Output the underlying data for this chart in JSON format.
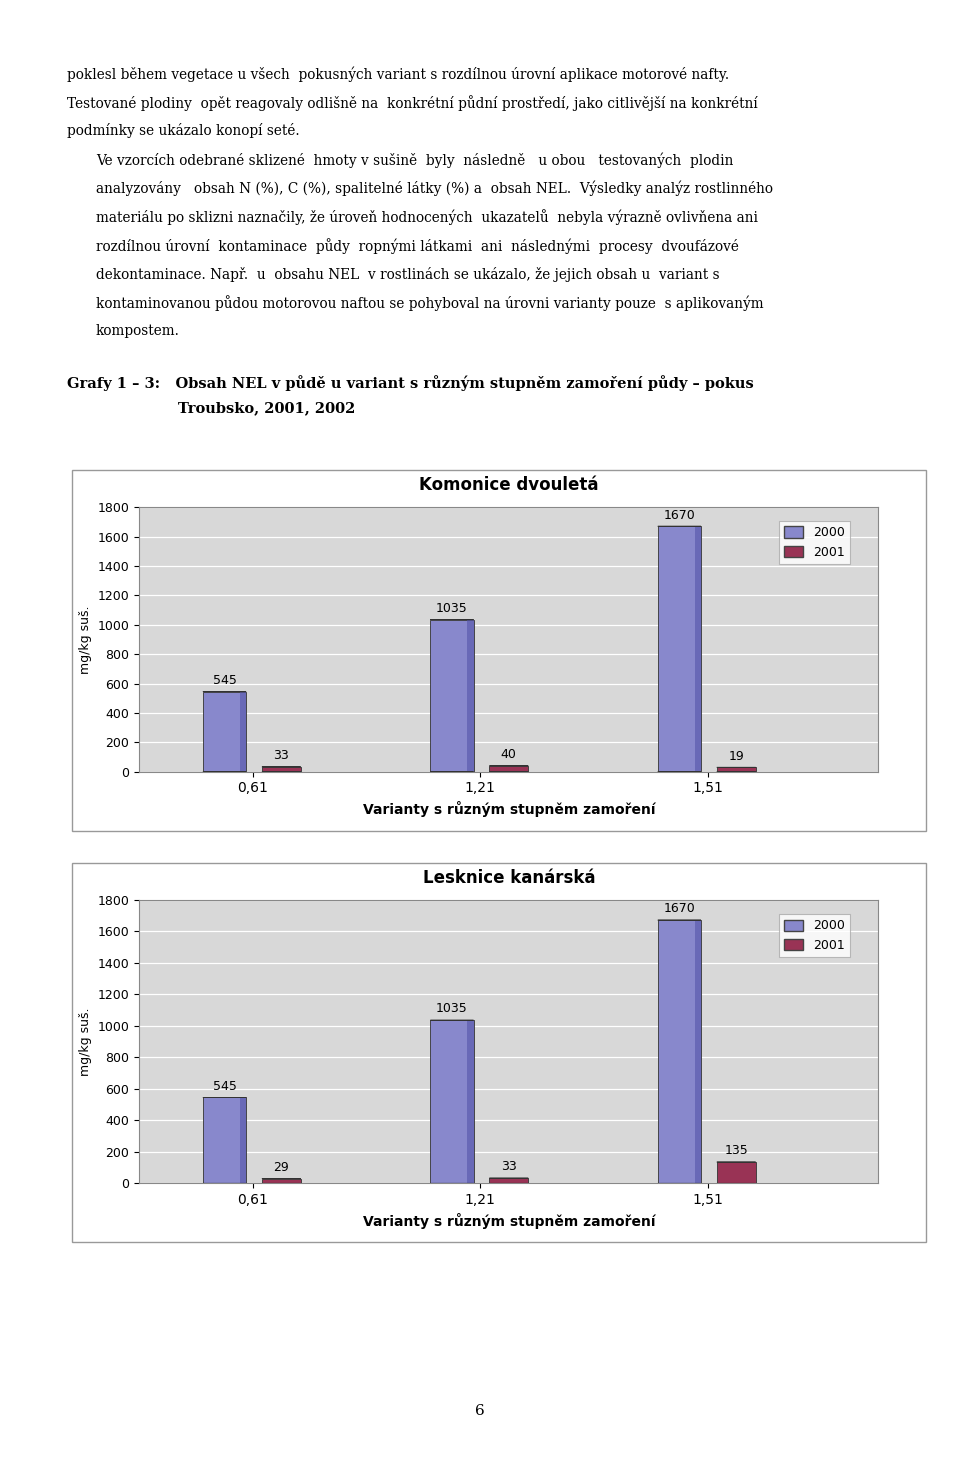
{
  "chart1": {
    "title": "Komonice dvouletá",
    "categories": [
      "0,61",
      "1,21",
      "1,51"
    ],
    "series_2000": [
      545,
      1035,
      1670
    ],
    "series_2001": [
      33,
      40,
      19
    ],
    "color_2000": "#8888CC",
    "color_2000_dark": "#5555AA",
    "color_2001": "#993355",
    "color_2001_dark": "#661133",
    "ylabel": "mg/kg suš.",
    "xlabel": "Varianty s různým stupněm zamoření",
    "ylim": [
      0,
      1800
    ],
    "yticks": [
      0,
      200,
      400,
      600,
      800,
      1000,
      1200,
      1400,
      1600,
      1800
    ]
  },
  "chart2": {
    "title": "Lesknice kanárská",
    "categories": [
      "0,61",
      "1,21",
      "1,51"
    ],
    "series_2000": [
      545,
      1035,
      1670
    ],
    "series_2001": [
      29,
      33,
      135
    ],
    "color_2000": "#8888CC",
    "color_2000_dark": "#5555AA",
    "color_2001": "#993355",
    "color_2001_dark": "#661133",
    "ylabel": "mg/kg suš.",
    "xlabel": "Varianty s různým stupněm zamoření",
    "ylim": [
      0,
      1800
    ],
    "yticks": [
      0,
      200,
      400,
      600,
      800,
      1000,
      1200,
      1400,
      1600,
      1800
    ]
  },
  "legend_2000": "2000",
  "legend_2001": "2001",
  "page_texts": [
    {
      "text": "poklesl během vegetace u všech  pokusných variant s rozdílnou úrovní aplikace motorové nafty.",
      "indent": false
    },
    {
      "text": "Testované plodiny  opět reagovaly odlišně na  konkrétní půdní prostředí, jako citlivější na konkrétní",
      "indent": false
    },
    {
      "text": "podmínky se ukázalo konopí seté.",
      "indent": false
    },
    {
      "text": "Ve vzorcích odebrané sklizené  hmoty v sušině  byly  následně   u obou   testovaných  plodin",
      "indent": true
    },
    {
      "text": "analyzovány   obsah N (%), C (%), spalitelné látky (%) a  obsah NEL.  Výsledky analýz rostlinného",
      "indent": true
    },
    {
      "text": "materiálu po sklizni naznačily, že úroveň hodnocených  ukazatelů  nebyla výrazně ovlivňena ani",
      "indent": true
    },
    {
      "text": "rozdílnou úrovní  kontaminace  půdy  ropnými látkami  ani  následnými  procesy  dvoufázové",
      "indent": true
    },
    {
      "text": "dekontaminace. Např.  u  obsahu NEL  v rostlinách se ukázalo, že jejich obsah u  variant s",
      "indent": true
    },
    {
      "text": "kontaminovanou půdou motorovou naftou se pohyboval na úrovni varianty pouze  s aplikovaným",
      "indent": true
    },
    {
      "text": "kompostem.",
      "indent": true
    }
  ],
  "graf_heading_line1": "Grafy 1 – 3:   Obsah NEL v půdě u variant s různým stupněm zamoření půdy – pokus",
  "graf_heading_line2": "Troubsko, 2001, 2002",
  "page_number": "6",
  "background_color": "#ffffff"
}
